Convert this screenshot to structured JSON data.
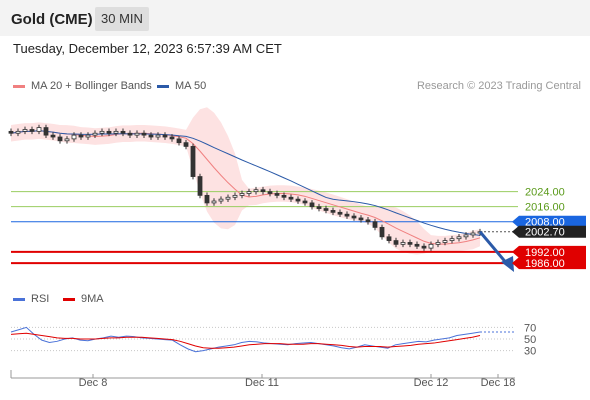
{
  "header": {
    "title": "Gold (CME)",
    "timeframe": "30 MIN"
  },
  "timestamp": "Tuesday, December 12, 2023 6:57:39 AM CET",
  "legend": [
    {
      "label": "MA 20 + Bollinger Bands",
      "color": "#f08080"
    },
    {
      "label": "MA 50",
      "color": "#2b5aa8"
    }
  ],
  "rsi_legend": [
    {
      "label": "RSI",
      "color": "#4a72d8"
    },
    {
      "label": "9MA",
      "color": "#e00000"
    }
  ],
  "credit": "Research © 2023 Trading Central",
  "chart_data": {
    "type": "candlestick",
    "price_axis": {
      "ylim": [
        1976,
        2070
      ]
    },
    "x_ticks": [
      "Dec 8",
      "Dec 11",
      "Dec 12",
      "Dec 18"
    ],
    "levels": [
      {
        "label": "2024.00",
        "value": 2024,
        "kind": "resistance",
        "color": "#9acd60"
      },
      {
        "label": "2016.00",
        "value": 2016,
        "kind": "resistance",
        "color": "#9acd60"
      },
      {
        "label": "2008.00",
        "value": 2008,
        "kind": "pivot",
        "color": "#1a66e0"
      },
      {
        "label": "1992.00",
        "value": 1992,
        "kind": "support",
        "color": "#e00000"
      },
      {
        "label": "1986.00",
        "value": 1986,
        "kind": "support",
        "color": "#e00000"
      }
    ],
    "last_price": {
      "label": "2002.70",
      "value": 2002.7
    },
    "close_series": [
      2055,
      2056,
      2057,
      2056,
      2058,
      2054,
      2053,
      2051,
      2052,
      2054,
      2053,
      2054,
      2055,
      2056,
      2055,
      2056,
      2055,
      2054,
      2055,
      2054,
      2053,
      2054,
      2053,
      2052,
      2050,
      2048,
      2032,
      2022,
      2018,
      2019,
      2020,
      2021,
      2022,
      2023,
      2024,
      2025,
      2024,
      2023,
      2022,
      2021,
      2020,
      2019,
      2018,
      2016,
      2015,
      2014,
      2013,
      2012,
      2011,
      2010,
      2009,
      2008,
      2005,
      2000,
      1998,
      1996,
      1997,
      1996,
      1995,
      1994,
      1996,
      1997,
      1998,
      1999,
      2000,
      2001,
      2002,
      2002.7
    ],
    "rsi": {
      "yticks": [
        70,
        50,
        30
      ],
      "ylim": [
        0,
        100
      ],
      "rsi_series": [
        62,
        66,
        70,
        58,
        48,
        44,
        46,
        50,
        52,
        48,
        47,
        50,
        52,
        55,
        53,
        55,
        54,
        52,
        51,
        50,
        49,
        48,
        40,
        33,
        28,
        30,
        33,
        36,
        38,
        40,
        44,
        46,
        45,
        43,
        42,
        41,
        40,
        42,
        43,
        44,
        42,
        40,
        38,
        35,
        33,
        36,
        40,
        38,
        36,
        34,
        40,
        42,
        44,
        46,
        45,
        48,
        50,
        52,
        56,
        58,
        60,
        62
      ],
      "ma_series": [
        58,
        59,
        60,
        58,
        56,
        54,
        52,
        51,
        51,
        50,
        50,
        50,
        51,
        52,
        52,
        53,
        53,
        53,
        52,
        51,
        50,
        49,
        46,
        42,
        38,
        35,
        34,
        34,
        35,
        36,
        38,
        40,
        41,
        42,
        42,
        42,
        41,
        41,
        41,
        42,
        42,
        41,
        40,
        39,
        37,
        36,
        37,
        37,
        37,
        36,
        37,
        38,
        39,
        41,
        42,
        43,
        45,
        47,
        49,
        51,
        53,
        56
      ]
    }
  }
}
